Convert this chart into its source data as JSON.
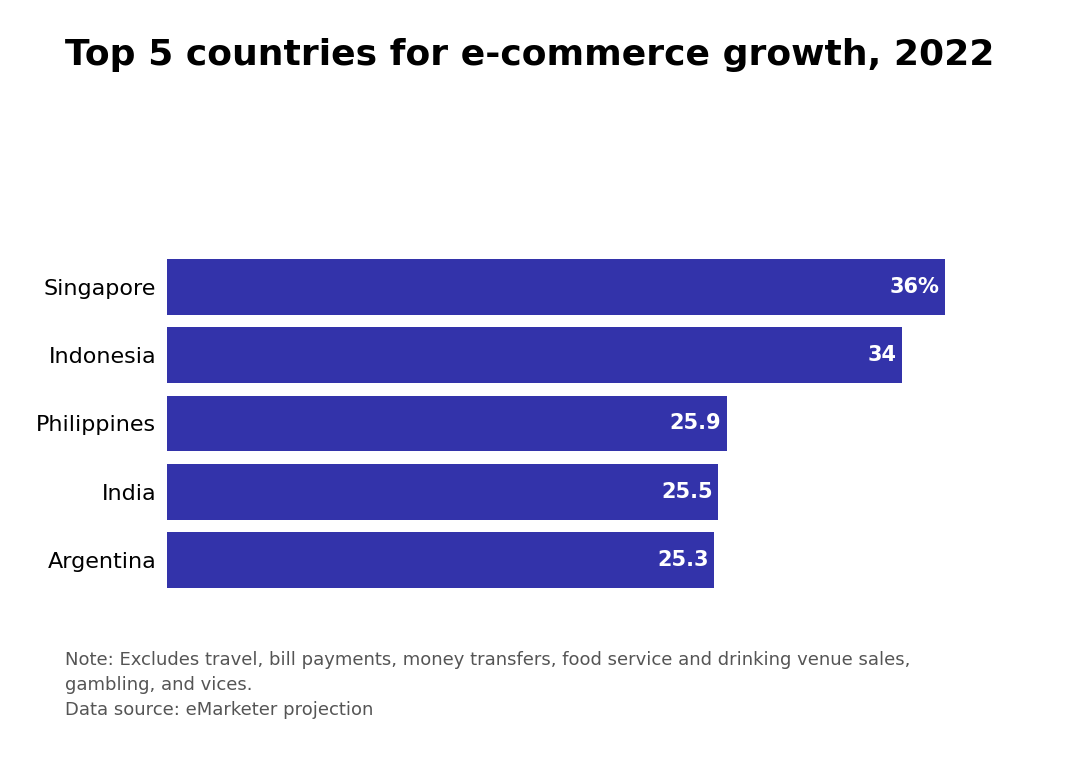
{
  "title": "Top 5 countries for e-commerce growth, 2022",
  "categories": [
    "Singapore",
    "Indonesia",
    "Philippines",
    "India",
    "Argentina"
  ],
  "values": [
    36,
    34,
    25.9,
    25.5,
    25.3
  ],
  "labels": [
    "36%",
    "34",
    "25.9",
    "25.5",
    "25.3"
  ],
  "bar_color": "#3333aa",
  "label_color": "#ffffff",
  "title_color": "#000000",
  "background_color": "#ffffff",
  "note_line1": "Note: Excludes travel, bill payments, money transfers, food service and drinking venue sales,",
  "note_line2": "gambling, and vices.",
  "source": "Data source: eMarketer projection",
  "title_fontsize": 26,
  "label_fontsize": 15,
  "category_fontsize": 16,
  "note_fontsize": 13,
  "xlim": [
    0,
    40
  ],
  "bar_height": 0.82
}
